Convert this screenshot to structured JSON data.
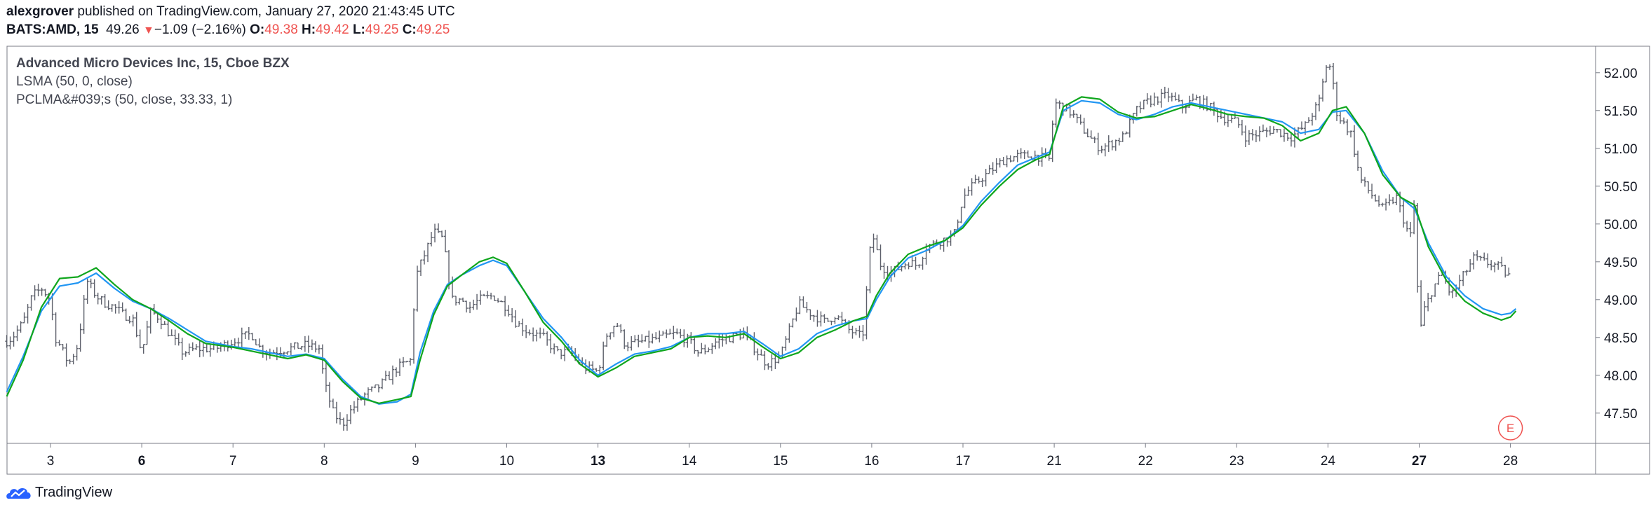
{
  "header": {
    "author": "alexgrover",
    "published_text": "published on TradingView.com, January 27, 2020 21:43:45 UTC",
    "symbol": "BATS:AMD, 15",
    "last": "49.26",
    "change": "−1.09 (−2.16%)",
    "o_label": "O:",
    "o": "49.38",
    "h_label": "H:",
    "h": "49.42",
    "l_label": "L:",
    "l": "49.25",
    "c_label": "C:",
    "c": "49.25"
  },
  "legend": {
    "series_title": "Advanced Micro Devices Inc, 15, Cboe BZX",
    "ind1": "LSMA (50, 0, close)",
    "ind2": "PCLMA&#039;s (50, close, 33.33, 1)"
  },
  "footer": {
    "brand": "TradingView"
  },
  "colors": {
    "candle": "#5d606b",
    "lsma": "#2196f3",
    "pclma": "#0fa61d",
    "grid": "#e0e3eb",
    "down": "#ef5350",
    "earnings": "#ef5350"
  },
  "earnings_badge": "E",
  "chart_data": {
    "type": "line",
    "symbol": "BATS:AMD",
    "interval": "15",
    "ylim": [
      47.1,
      52.35
    ],
    "y_ticks": [
      "52.00",
      "51.50",
      "51.00",
      "50.50",
      "50.00",
      "49.50",
      "49.00",
      "48.50",
      "48.00",
      "47.50"
    ],
    "x_ticks": [
      {
        "label": "3",
        "bold": false,
        "i": 0
      },
      {
        "label": "6",
        "bold": true,
        "i": 1
      },
      {
        "label": "7",
        "bold": false,
        "i": 2
      },
      {
        "label": "8",
        "bold": false,
        "i": 3
      },
      {
        "label": "9",
        "bold": false,
        "i": 4
      },
      {
        "label": "10",
        "bold": false,
        "i": 5
      },
      {
        "label": "13",
        "bold": true,
        "i": 6
      },
      {
        "label": "14",
        "bold": false,
        "i": 7
      },
      {
        "label": "15",
        "bold": false,
        "i": 8
      },
      {
        "label": "16",
        "bold": false,
        "i": 9
      },
      {
        "label": "17",
        "bold": false,
        "i": 10
      },
      {
        "label": "21",
        "bold": false,
        "i": 11
      },
      {
        "label": "22",
        "bold": false,
        "i": 12
      },
      {
        "label": "23",
        "bold": false,
        "i": 13
      },
      {
        "label": "24",
        "bold": false,
        "i": 14
      },
      {
        "label": "27",
        "bold": true,
        "i": 15
      },
      {
        "label": "28",
        "bold": false,
        "i": 16
      }
    ],
    "price_path": [
      [
        -0.48,
        48.45
      ],
      [
        -0.42,
        48.5
      ],
      [
        -0.3,
        48.7
      ],
      [
        -0.2,
        49.05
      ],
      [
        -0.1,
        49.15
      ],
      [
        0,
        49.0
      ],
      [
        0.05,
        48.5
      ],
      [
        0.1,
        48.4
      ],
      [
        0.2,
        48.15
      ],
      [
        0.3,
        48.4
      ],
      [
        0.4,
        49.25
      ],
      [
        0.5,
        49.05
      ],
      [
        0.6,
        48.95
      ],
      [
        0.7,
        48.9
      ],
      [
        0.8,
        48.8
      ],
      [
        0.9,
        48.75
      ],
      [
        1.0,
        48.3
      ],
      [
        1.1,
        48.85
      ],
      [
        1.2,
        48.75
      ],
      [
        1.3,
        48.55
      ],
      [
        1.45,
        48.3
      ],
      [
        1.6,
        48.35
      ],
      [
        1.8,
        48.35
      ],
      [
        2.0,
        48.45
      ],
      [
        2.1,
        48.5
      ],
      [
        2.2,
        48.55
      ],
      [
        2.3,
        48.35
      ],
      [
        2.4,
        48.3
      ],
      [
        2.6,
        48.35
      ],
      [
        2.8,
        48.4
      ],
      [
        2.95,
        48.35
      ],
      [
        3.0,
        47.9
      ],
      [
        3.1,
        47.5
      ],
      [
        3.2,
        47.35
      ],
      [
        3.3,
        47.55
      ],
      [
        3.45,
        47.75
      ],
      [
        3.6,
        47.85
      ],
      [
        3.8,
        48.1
      ],
      [
        3.95,
        48.2
      ],
      [
        4.0,
        49.3
      ],
      [
        4.1,
        49.6
      ],
      [
        4.2,
        49.9
      ],
      [
        4.3,
        49.8
      ],
      [
        4.4,
        49.0
      ],
      [
        4.5,
        49.0
      ],
      [
        4.6,
        48.9
      ],
      [
        4.7,
        49.0
      ],
      [
        4.85,
        49.05
      ],
      [
        5.0,
        48.9
      ],
      [
        5.1,
        48.7
      ],
      [
        5.2,
        48.6
      ],
      [
        5.4,
        48.5
      ],
      [
        5.55,
        48.3
      ],
      [
        5.7,
        48.3
      ],
      [
        5.85,
        48.1
      ],
      [
        6.0,
        48.05
      ],
      [
        6.1,
        48.55
      ],
      [
        6.2,
        48.7
      ],
      [
        6.3,
        48.4
      ],
      [
        6.5,
        48.45
      ],
      [
        6.7,
        48.5
      ],
      [
        6.85,
        48.55
      ],
      [
        7.0,
        48.45
      ],
      [
        7.1,
        48.3
      ],
      [
        7.2,
        48.35
      ],
      [
        7.3,
        48.45
      ],
      [
        7.45,
        48.5
      ],
      [
        7.6,
        48.55
      ],
      [
        7.75,
        48.3
      ],
      [
        7.85,
        48.15
      ],
      [
        8.0,
        48.25
      ],
      [
        8.1,
        48.6
      ],
      [
        8.2,
        48.95
      ],
      [
        8.35,
        48.8
      ],
      [
        8.5,
        48.7
      ],
      [
        8.6,
        48.8
      ],
      [
        8.75,
        48.6
      ],
      [
        8.9,
        48.5
      ],
      [
        9.0,
        49.9
      ],
      [
        9.1,
        49.45
      ],
      [
        9.2,
        49.35
      ],
      [
        9.4,
        49.5
      ],
      [
        9.5,
        49.45
      ],
      [
        9.6,
        49.7
      ],
      [
        9.8,
        49.8
      ],
      [
        9.9,
        49.85
      ],
      [
        10.0,
        50.35
      ],
      [
        10.1,
        50.5
      ],
      [
        10.3,
        50.7
      ],
      [
        10.45,
        50.85
      ],
      [
        10.6,
        50.9
      ],
      [
        10.8,
        50.9
      ],
      [
        10.95,
        50.85
      ],
      [
        11.0,
        51.6
      ],
      [
        11.1,
        51.55
      ],
      [
        11.2,
        51.45
      ],
      [
        11.35,
        51.2
      ],
      [
        11.5,
        51.0
      ],
      [
        11.6,
        51.05
      ],
      [
        11.75,
        51.15
      ],
      [
        11.9,
        51.5
      ],
      [
        12.0,
        51.6
      ],
      [
        12.1,
        51.65
      ],
      [
        12.25,
        51.7
      ],
      [
        12.4,
        51.55
      ],
      [
        12.55,
        51.65
      ],
      [
        12.7,
        51.55
      ],
      [
        12.85,
        51.4
      ],
      [
        13.0,
        51.35
      ],
      [
        13.1,
        51.15
      ],
      [
        13.25,
        51.2
      ],
      [
        13.4,
        51.25
      ],
      [
        13.6,
        51.15
      ],
      [
        13.75,
        51.3
      ],
      [
        13.9,
        51.6
      ],
      [
        14.0,
        52.2
      ],
      [
        14.05,
        51.9
      ],
      [
        14.1,
        51.45
      ],
      [
        14.25,
        51.2
      ],
      [
        14.35,
        50.6
      ],
      [
        14.5,
        50.35
      ],
      [
        14.6,
        50.2
      ],
      [
        14.75,
        50.35
      ],
      [
        14.9,
        49.8
      ],
      [
        14.95,
        50.3
      ],
      [
        15.0,
        48.5
      ],
      [
        15.05,
        48.85
      ],
      [
        15.15,
        49.15
      ],
      [
        15.25,
        49.35
      ],
      [
        15.35,
        49.05
      ],
      [
        15.5,
        49.35
      ],
      [
        15.6,
        49.55
      ],
      [
        15.7,
        49.5
      ],
      [
        15.85,
        49.45
      ],
      [
        16.0,
        49.3
      ]
    ],
    "series": [
      {
        "name": "LSMA (50, 0, close)",
        "points": [
          [
            -0.48,
            47.78
          ],
          [
            -0.3,
            48.25
          ],
          [
            -0.1,
            48.85
          ],
          [
            0.1,
            49.18
          ],
          [
            0.3,
            49.22
          ],
          [
            0.5,
            49.35
          ],
          [
            0.7,
            49.15
          ],
          [
            0.9,
            48.98
          ],
          [
            1.1,
            48.88
          ],
          [
            1.3,
            48.75
          ],
          [
            1.5,
            48.6
          ],
          [
            1.7,
            48.45
          ],
          [
            2.0,
            48.38
          ],
          [
            2.2,
            48.35
          ],
          [
            2.4,
            48.3
          ],
          [
            2.6,
            48.25
          ],
          [
            2.8,
            48.28
          ],
          [
            3.0,
            48.22
          ],
          [
            3.2,
            47.95
          ],
          [
            3.4,
            47.72
          ],
          [
            3.6,
            47.62
          ],
          [
            3.8,
            47.65
          ],
          [
            3.95,
            47.75
          ],
          [
            4.05,
            48.3
          ],
          [
            4.2,
            48.85
          ],
          [
            4.35,
            49.2
          ],
          [
            4.5,
            49.32
          ],
          [
            4.7,
            49.45
          ],
          [
            4.85,
            49.52
          ],
          [
            5.0,
            49.45
          ],
          [
            5.2,
            49.1
          ],
          [
            5.4,
            48.75
          ],
          [
            5.6,
            48.5
          ],
          [
            5.8,
            48.2
          ],
          [
            6.0,
            48.0
          ],
          [
            6.2,
            48.15
          ],
          [
            6.4,
            48.28
          ],
          [
            6.6,
            48.32
          ],
          [
            6.8,
            48.38
          ],
          [
            7.0,
            48.5
          ],
          [
            7.2,
            48.55
          ],
          [
            7.4,
            48.55
          ],
          [
            7.6,
            48.58
          ],
          [
            7.8,
            48.42
          ],
          [
            8.0,
            48.25
          ],
          [
            8.2,
            48.35
          ],
          [
            8.4,
            48.55
          ],
          [
            8.6,
            48.65
          ],
          [
            8.8,
            48.72
          ],
          [
            8.95,
            48.75
          ],
          [
            9.05,
            49.0
          ],
          [
            9.2,
            49.3
          ],
          [
            9.4,
            49.55
          ],
          [
            9.6,
            49.65
          ],
          [
            9.8,
            49.78
          ],
          [
            10.0,
            49.98
          ],
          [
            10.2,
            50.3
          ],
          [
            10.4,
            50.55
          ],
          [
            10.6,
            50.78
          ],
          [
            10.8,
            50.88
          ],
          [
            10.95,
            50.95
          ],
          [
            11.1,
            51.5
          ],
          [
            11.3,
            51.63
          ],
          [
            11.5,
            51.6
          ],
          [
            11.7,
            51.45
          ],
          [
            11.9,
            51.38
          ],
          [
            12.1,
            51.45
          ],
          [
            12.3,
            51.55
          ],
          [
            12.5,
            51.6
          ],
          [
            12.7,
            51.55
          ],
          [
            12.9,
            51.5
          ],
          [
            13.1,
            51.45
          ],
          [
            13.3,
            51.4
          ],
          [
            13.5,
            51.35
          ],
          [
            13.7,
            51.2
          ],
          [
            13.9,
            51.25
          ],
          [
            14.05,
            51.48
          ],
          [
            14.2,
            51.5
          ],
          [
            14.4,
            51.2
          ],
          [
            14.6,
            50.7
          ],
          [
            14.8,
            50.35
          ],
          [
            14.95,
            50.2
          ],
          [
            15.1,
            49.75
          ],
          [
            15.3,
            49.3
          ],
          [
            15.5,
            49.05
          ],
          [
            15.7,
            48.88
          ],
          [
            15.9,
            48.8
          ],
          [
            16.0,
            48.82
          ],
          [
            16.06,
            48.88
          ]
        ]
      },
      {
        "name": "PCLMA&#039;s (50, close, 33.33, 1)",
        "points": [
          [
            -0.48,
            47.72
          ],
          [
            -0.3,
            48.2
          ],
          [
            -0.1,
            48.9
          ],
          [
            0.1,
            49.28
          ],
          [
            0.3,
            49.3
          ],
          [
            0.5,
            49.42
          ],
          [
            0.7,
            49.2
          ],
          [
            0.9,
            49.0
          ],
          [
            1.1,
            48.88
          ],
          [
            1.3,
            48.72
          ],
          [
            1.5,
            48.55
          ],
          [
            1.7,
            48.42
          ],
          [
            2.0,
            48.37
          ],
          [
            2.2,
            48.32
          ],
          [
            2.4,
            48.27
          ],
          [
            2.6,
            48.22
          ],
          [
            2.8,
            48.27
          ],
          [
            3.0,
            48.2
          ],
          [
            3.2,
            47.92
          ],
          [
            3.4,
            47.7
          ],
          [
            3.6,
            47.63
          ],
          [
            3.8,
            47.68
          ],
          [
            3.95,
            47.72
          ],
          [
            4.05,
            48.2
          ],
          [
            4.2,
            48.8
          ],
          [
            4.35,
            49.18
          ],
          [
            4.5,
            49.32
          ],
          [
            4.7,
            49.5
          ],
          [
            4.85,
            49.56
          ],
          [
            5.0,
            49.48
          ],
          [
            5.2,
            49.1
          ],
          [
            5.4,
            48.7
          ],
          [
            5.6,
            48.45
          ],
          [
            5.8,
            48.15
          ],
          [
            6.0,
            47.98
          ],
          [
            6.2,
            48.1
          ],
          [
            6.4,
            48.25
          ],
          [
            6.6,
            48.3
          ],
          [
            6.8,
            48.35
          ],
          [
            7.0,
            48.5
          ],
          [
            7.2,
            48.52
          ],
          [
            7.4,
            48.5
          ],
          [
            7.6,
            48.55
          ],
          [
            7.8,
            48.38
          ],
          [
            8.0,
            48.22
          ],
          [
            8.2,
            48.3
          ],
          [
            8.4,
            48.5
          ],
          [
            8.6,
            48.6
          ],
          [
            8.8,
            48.72
          ],
          [
            8.95,
            48.78
          ],
          [
            9.05,
            49.05
          ],
          [
            9.2,
            49.35
          ],
          [
            9.4,
            49.6
          ],
          [
            9.6,
            49.7
          ],
          [
            9.8,
            49.78
          ],
          [
            10.0,
            49.95
          ],
          [
            10.2,
            50.25
          ],
          [
            10.4,
            50.5
          ],
          [
            10.6,
            50.72
          ],
          [
            10.8,
            50.85
          ],
          [
            10.95,
            50.92
          ],
          [
            11.1,
            51.55
          ],
          [
            11.3,
            51.68
          ],
          [
            11.5,
            51.65
          ],
          [
            11.7,
            51.48
          ],
          [
            11.9,
            51.4
          ],
          [
            12.1,
            51.42
          ],
          [
            12.3,
            51.5
          ],
          [
            12.5,
            51.58
          ],
          [
            12.7,
            51.52
          ],
          [
            12.9,
            51.45
          ],
          [
            13.1,
            51.42
          ],
          [
            13.3,
            51.4
          ],
          [
            13.5,
            51.3
          ],
          [
            13.7,
            51.1
          ],
          [
            13.9,
            51.2
          ],
          [
            14.05,
            51.5
          ],
          [
            14.2,
            51.55
          ],
          [
            14.4,
            51.2
          ],
          [
            14.6,
            50.65
          ],
          [
            14.8,
            50.35
          ],
          [
            14.95,
            50.25
          ],
          [
            15.1,
            49.7
          ],
          [
            15.3,
            49.25
          ],
          [
            15.5,
            48.98
          ],
          [
            15.7,
            48.82
          ],
          [
            15.9,
            48.73
          ],
          [
            16.0,
            48.77
          ],
          [
            16.06,
            48.85
          ]
        ]
      }
    ]
  }
}
